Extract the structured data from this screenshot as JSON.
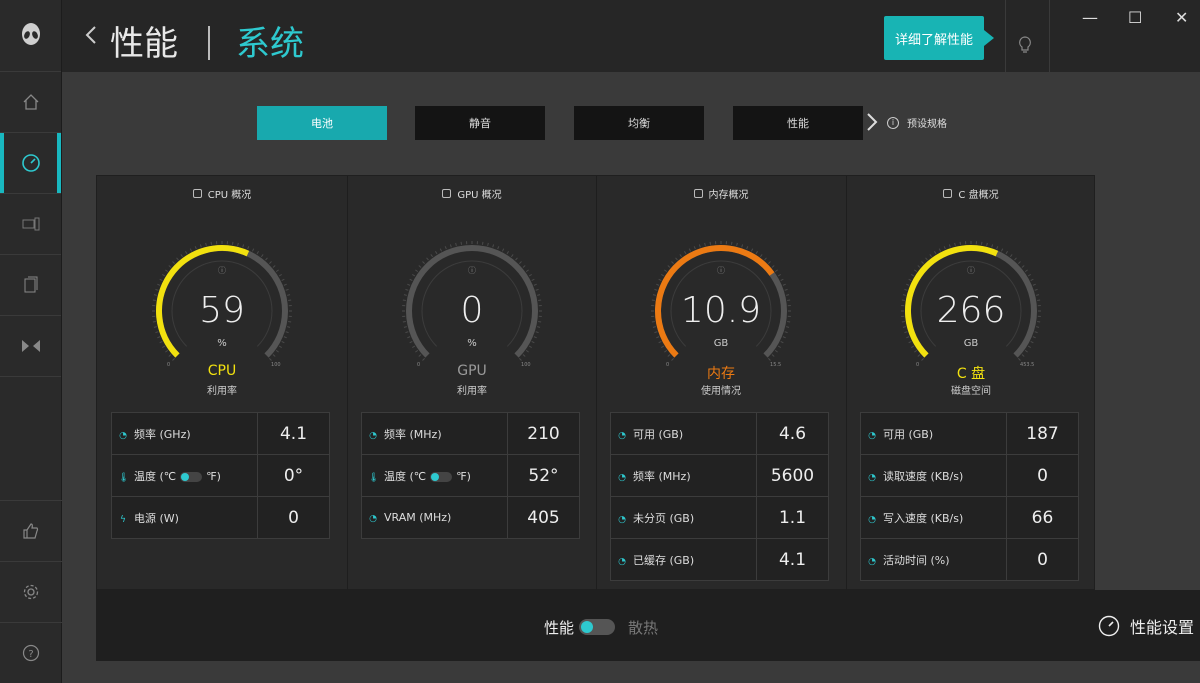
{
  "header": {
    "title": "性能",
    "subtitle": "系统",
    "learn_more": "详细了解性能",
    "win_minimize": "—",
    "win_maximize": "☐",
    "win_close": "✕"
  },
  "modes": {
    "items": [
      "电池",
      "静音",
      "均衡",
      "性能"
    ],
    "active": "电池",
    "preset_label": "预设规格"
  },
  "cards": [
    {
      "title": "CPU 概况",
      "value": "59",
      "unit": "%",
      "name": "CPU",
      "sub": "利用率",
      "gauge_fraction": 0.59,
      "color": "#f2e10f",
      "min": "0",
      "max": "100",
      "rows": [
        {
          "icon": "gauge-icon",
          "label": "频率 (GHz)",
          "value": "4.1"
        },
        {
          "icon": "thermometer-icon",
          "label": "温度 (℃",
          "label2": "℉)",
          "toggle": true,
          "value": "0°"
        },
        {
          "icon": "bolt-icon",
          "label": "电源 (W)",
          "value": "0"
        }
      ]
    },
    {
      "title": "GPU 概况",
      "value": "0",
      "unit": "%",
      "name": "GPU",
      "sub": "利用率",
      "gauge_fraction": 0.0,
      "color": "#9a9a9a",
      "min": "0",
      "max": "100",
      "rows": [
        {
          "icon": "gauge-icon",
          "label": "频率 (MHz)",
          "value": "210"
        },
        {
          "icon": "thermometer-icon",
          "label": "温度 (℃",
          "label2": "℉)",
          "toggle": true,
          "value": "52°"
        },
        {
          "icon": "gauge-icon",
          "label": "VRAM (MHz)",
          "value": "405"
        }
      ]
    },
    {
      "title": "内存概况",
      "value": "10.9",
      "unit": "GB",
      "name": "内存",
      "sub": "使用情况",
      "gauge_fraction": 0.7,
      "color": "#ec7a13",
      "min": "0",
      "max": "15.5",
      "rows": [
        {
          "icon": "gauge-icon",
          "label": "可用 (GB)",
          "value": "4.6"
        },
        {
          "icon": "gauge-icon",
          "label": "频率 (MHz)",
          "value": "5600"
        },
        {
          "icon": "gauge-icon",
          "label": "未分页 (GB)",
          "value": "1.1"
        },
        {
          "icon": "gauge-icon",
          "label": "已缓存 (GB)",
          "value": "4.1"
        }
      ]
    },
    {
      "title": "C 盘概况",
      "value": "266",
      "unit": "GB",
      "name": "C 盘",
      "sub": "磁盘空间",
      "gauge_fraction": 0.59,
      "color": "#f2e10f",
      "min": "0",
      "max": "453.5",
      "rows": [
        {
          "icon": "gauge-icon",
          "label": "可用 (GB)",
          "value": "187"
        },
        {
          "icon": "gauge-icon",
          "label": "读取速度 (KB/s)",
          "value": "0"
        },
        {
          "icon": "gauge-icon",
          "label": "写入速度 (KB/s)",
          "value": "66"
        },
        {
          "icon": "gauge-icon",
          "label": "活动时间 (%)",
          "value": "0"
        }
      ]
    }
  ],
  "footer": {
    "perf_label": "性能",
    "cool_label": "散热",
    "settings_label": "性能设置"
  }
}
